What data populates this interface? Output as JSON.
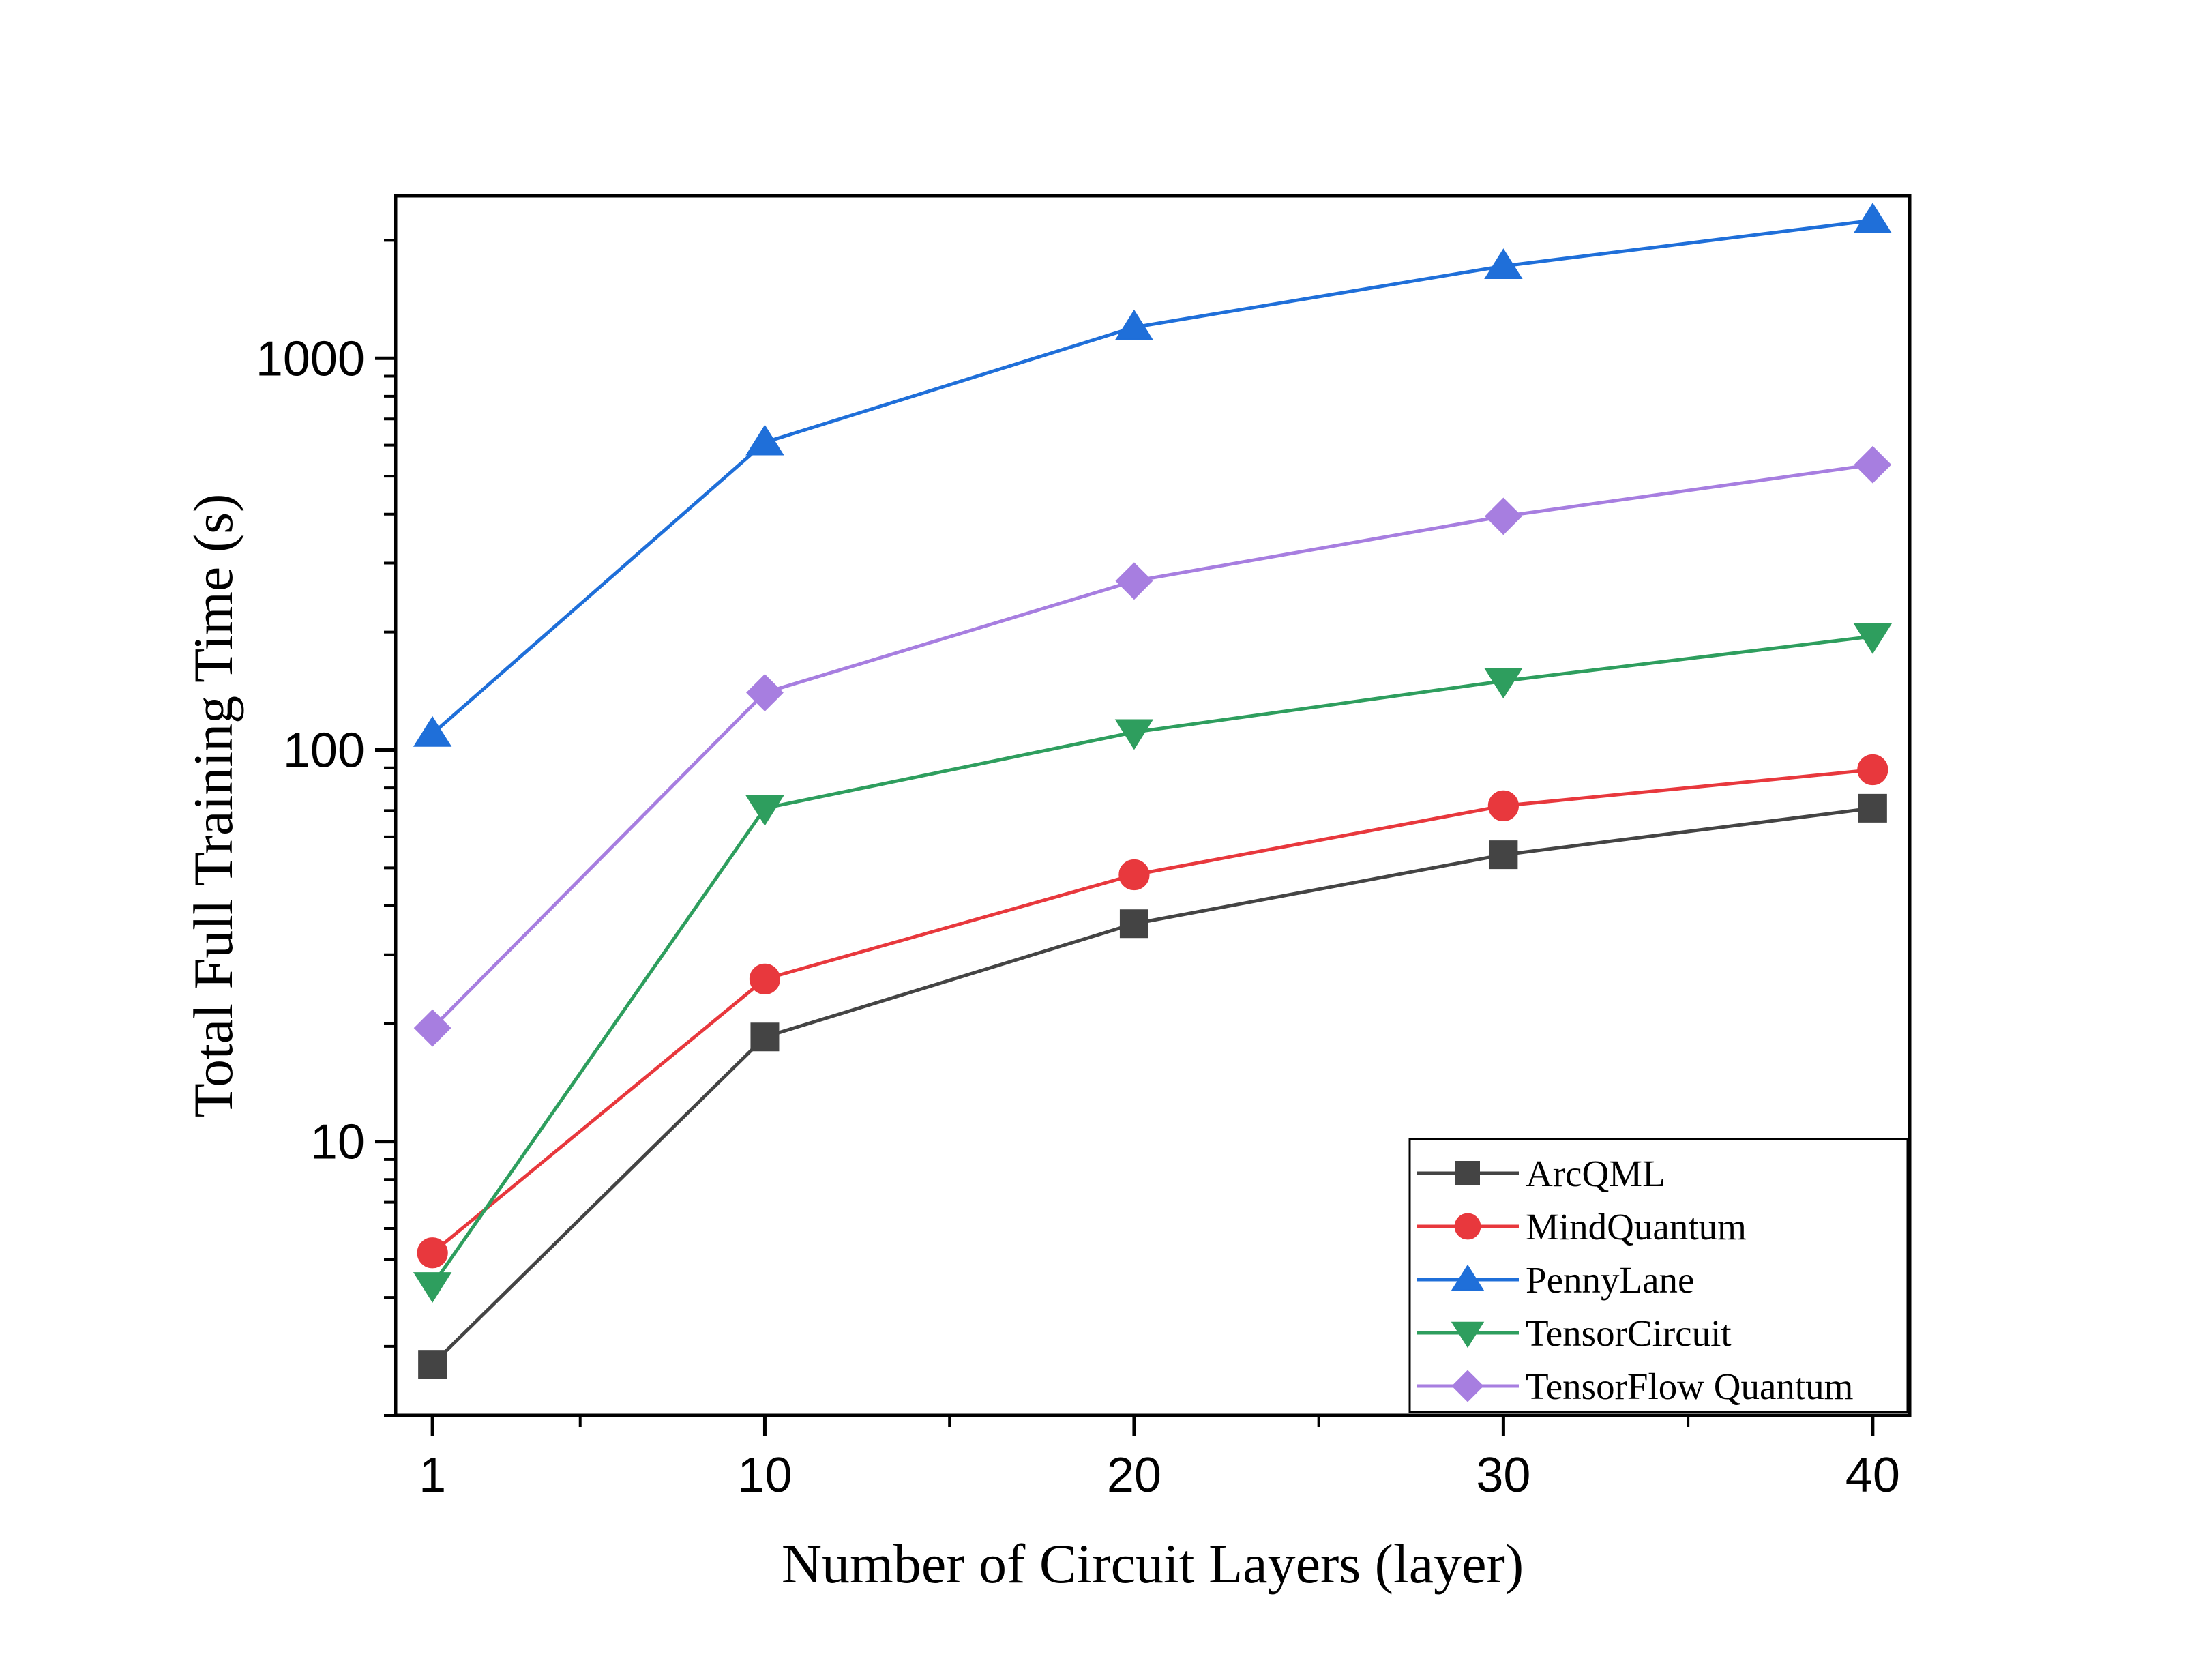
{
  "chart_data": {
    "type": "line",
    "title": "",
    "xlabel": "Number of Circuit Layers (layer)",
    "ylabel": "Total Full Training Time (s)",
    "x": [
      1,
      10,
      20,
      30,
      40
    ],
    "xticks": [
      "1",
      "10",
      "20",
      "30",
      "40"
    ],
    "xminor": [
      5,
      15,
      25,
      35
    ],
    "xlim": [
      0,
      41
    ],
    "ylim": [
      2,
      2600
    ],
    "yscale": "log",
    "yticks": [
      {
        "value": 10,
        "label": "10"
      },
      {
        "value": 100,
        "label": "100"
      },
      {
        "value": 1000,
        "label": "1000"
      }
    ],
    "grid": false,
    "legend_position": "bottom-right",
    "series": [
      {
        "name": "ArcQML",
        "color": "#444444",
        "marker": "square",
        "values": [
          2.7,
          18.5,
          36,
          54,
          71
        ]
      },
      {
        "name": "MindQuantum",
        "color": "#e8383d",
        "marker": "circle",
        "values": [
          5.2,
          26,
          48,
          72,
          89
        ]
      },
      {
        "name": "PennyLane",
        "color": "#1f6fd9",
        "marker": "triangle-up",
        "values": [
          110,
          610,
          1200,
          1720,
          2250
        ]
      },
      {
        "name": "TensorCircuit",
        "color": "#2e9e5e",
        "marker": "triangle-down",
        "values": [
          4.3,
          71,
          111,
          150,
          195
        ]
      },
      {
        "name": "TensorFlow Quantum",
        "color": "#a77ee0",
        "marker": "diamond",
        "values": [
          19.5,
          140,
          270,
          395,
          535
        ]
      }
    ]
  }
}
